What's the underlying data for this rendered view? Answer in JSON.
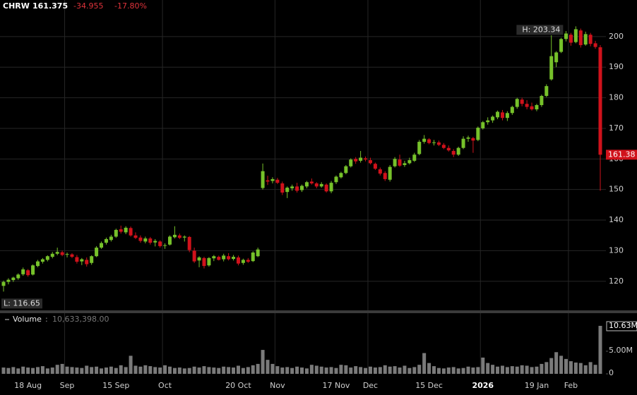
{
  "chart_data": [
    {
      "type": "candlestick",
      "title": "CHRW",
      "last": "161.375",
      "change": "-34.955",
      "change_pct": "-17.80%",
      "high_label": "H: 203.34",
      "low_label": "L: 116.65",
      "last_label": "161.38",
      "up_color": "#76c12a",
      "down_color": "#d0121b",
      "ylim": [
        110.5,
        207.8
      ],
      "yticks": [
        120,
        130,
        140,
        150,
        160,
        170,
        180,
        190,
        200
      ],
      "grid": true,
      "open": [
        118.5,
        119.8,
        120.4,
        121.0,
        122.3,
        123.6,
        122.2,
        125.0,
        126.4,
        127.0,
        128.0,
        129.0,
        129.5,
        128.7,
        128.8,
        127.9,
        126.5,
        127.0,
        126.0,
        128.2,
        131.0,
        132.6,
        133.5,
        134.6,
        137.0,
        136.0,
        137.4,
        135.0,
        134.3,
        133.0,
        134.0,
        132.7,
        133.0,
        131.6,
        132.0,
        134.4,
        135.0,
        134.3,
        134.5,
        130.0,
        126.8,
        127.6,
        125.2,
        127.5,
        128.0,
        127.2,
        128.2,
        127.3,
        127.8,
        126.0,
        127.0,
        126.6,
        128.2,
        150.5,
        153.0,
        152.8,
        153.2,
        152.0,
        149.2,
        150.4,
        151.0,
        149.8,
        151.0,
        152.6,
        152.0,
        151.0,
        151.6,
        149.4,
        152.4,
        154.0,
        155.4,
        157.6,
        160.0,
        159.4,
        160.2,
        159.6,
        158.4,
        156.6,
        155.4,
        153.2,
        157.6,
        159.8,
        158.0,
        158.6,
        159.4,
        161.6,
        165.6,
        166.4,
        165.2,
        165.4,
        164.6,
        163.6,
        162.6,
        161.4,
        163.6,
        166.6,
        166.8,
        166.2,
        170.0,
        172.0,
        172.6,
        173.6,
        175.2,
        173.4,
        175.0,
        177.0,
        179.4,
        178.0,
        177.2,
        176.2,
        177.6,
        180.6,
        186.0,
        191.6,
        195.0,
        199.2,
        200.6,
        198.2,
        202.0,
        197.4,
        200.6,
        197.8,
        196.5
      ],
      "high": [
        120.2,
        121.0,
        121.5,
        122.6,
        124.5,
        124.0,
        125.5,
        127.0,
        127.6,
        128.5,
        129.6,
        131.0,
        130.0,
        129.4,
        129.2,
        128.6,
        127.6,
        127.8,
        128.5,
        131.5,
        133.0,
        134.3,
        135.2,
        137.2,
        138.2,
        138.0,
        137.9,
        136.0,
        135.0,
        134.6,
        134.5,
        133.8,
        133.4,
        132.4,
        135.0,
        138.0,
        135.6,
        135.0,
        134.8,
        131.0,
        128.2,
        128.0,
        127.9,
        128.6,
        128.4,
        129.0,
        129.2,
        128.6,
        128.4,
        127.4,
        127.6,
        129.8,
        131.0,
        158.5,
        154.5,
        154.0,
        153.8,
        152.6,
        151.0,
        151.6,
        152.2,
        151.6,
        152.8,
        153.6,
        152.4,
        152.4,
        152.0,
        152.8,
        154.6,
        155.8,
        158.0,
        160.2,
        160.6,
        162.6,
        160.8,
        160.4,
        158.8,
        157.2,
        156.0,
        158.0,
        160.6,
        161.4,
        159.4,
        160.4,
        162.0,
        166.2,
        167.8,
        166.8,
        166.2,
        166.0,
        165.2,
        164.4,
        163.2,
        164.0,
        167.4,
        167.6,
        167.2,
        170.6,
        172.4,
        173.6,
        174.2,
        175.8,
        176.0,
        175.6,
        177.4,
        180.0,
        180.0,
        179.2,
        178.4,
        178.0,
        181.0,
        184.4,
        200.4,
        195.2,
        199.6,
        201.8,
        201.2,
        203.34,
        202.6,
        201.6,
        201.2,
        198.6,
        197.2
      ],
      "low": [
        116.65,
        119.0,
        119.8,
        120.5,
        121.8,
        121.5,
        121.9,
        124.6,
        125.8,
        126.5,
        127.5,
        128.5,
        128.2,
        127.8,
        127.6,
        125.8,
        125.3,
        124.8,
        125.4,
        127.9,
        130.6,
        132.0,
        133.0,
        134.2,
        135.6,
        135.4,
        134.6,
        133.8,
        132.6,
        132.4,
        132.0,
        131.4,
        131.0,
        130.6,
        131.7,
        134.0,
        133.8,
        133.0,
        129.5,
        126.0,
        124.6,
        124.2,
        124.8,
        126.6,
        126.8,
        126.5,
        126.8,
        126.8,
        125.2,
        125.4,
        126.0,
        126.3,
        127.9,
        150.0,
        151.5,
        152.0,
        151.8,
        148.2,
        147.2,
        149.6,
        149.0,
        149.2,
        150.4,
        151.6,
        150.4,
        150.6,
        149.0,
        148.8,
        151.8,
        153.6,
        155.0,
        157.2,
        158.4,
        158.8,
        159.2,
        158.2,
        156.4,
        154.6,
        152.8,
        152.6,
        157.2,
        157.4,
        157.4,
        158.2,
        159.0,
        161.2,
        165.0,
        164.8,
        164.4,
        164.2,
        163.2,
        162.4,
        160.6,
        161.0,
        163.2,
        165.6,
        162.0,
        165.8,
        169.6,
        171.2,
        171.8,
        173.0,
        172.6,
        172.4,
        174.4,
        176.4,
        177.2,
        176.2,
        175.8,
        175.6,
        177.0,
        180.2,
        185.6,
        190.0,
        194.6,
        198.4,
        197.0,
        197.8,
        196.4,
        197.0,
        196.8,
        196.0,
        149.6
      ],
      "close": [
        119.8,
        120.5,
        121.2,
        122.2,
        123.9,
        122.0,
        125.2,
        126.5,
        127.2,
        128.2,
        129.0,
        129.6,
        128.6,
        128.9,
        128.0,
        126.4,
        127.2,
        125.6,
        128.2,
        131.0,
        132.5,
        133.8,
        134.6,
        136.8,
        136.2,
        137.5,
        135.0,
        134.2,
        133.2,
        134.0,
        132.6,
        133.2,
        131.5,
        131.8,
        134.6,
        135.2,
        134.2,
        134.6,
        130.2,
        126.5,
        127.8,
        125.0,
        127.6,
        128.2,
        127.0,
        128.4,
        127.2,
        128.0,
        125.8,
        127.0,
        126.4,
        129.4,
        130.4,
        156.0,
        152.6,
        153.4,
        152.2,
        149.0,
        150.6,
        151.0,
        149.6,
        151.2,
        152.4,
        152.0,
        151.0,
        151.8,
        149.4,
        152.2,
        154.2,
        155.4,
        157.6,
        159.8,
        159.2,
        160.4,
        159.8,
        158.6,
        156.8,
        155.2,
        153.4,
        157.4,
        160.0,
        157.8,
        158.6,
        159.6,
        161.4,
        165.6,
        166.6,
        165.2,
        165.4,
        164.6,
        163.6,
        162.8,
        161.4,
        163.6,
        166.6,
        167.0,
        166.0,
        170.2,
        172.0,
        172.6,
        173.8,
        175.4,
        173.4,
        175.0,
        177.0,
        179.6,
        178.0,
        177.0,
        176.2,
        177.6,
        180.6,
        183.8,
        193.6,
        194.8,
        199.2,
        201.0,
        198.0,
        202.4,
        197.2,
        200.8,
        197.6,
        196.6,
        161.375
      ]
    },
    {
      "type": "bar",
      "title": "Volume",
      "current": "10,633,398.00",
      "last_label": "10.63M",
      "color": "#7a7a7a",
      "ylim": [
        0,
        11250000
      ],
      "yticks": [
        0,
        {
          "value": 5000000,
          "label": "5.00M"
        }
      ],
      "categories": [
        null,
        null,
        null,
        null,
        null,
        "18 Aug",
        null,
        null,
        null,
        null,
        null,
        null,
        null,
        "Sep",
        null,
        null,
        null,
        null,
        null,
        null,
        null,
        null,
        null,
        "15 Sep",
        null,
        null,
        null,
        null,
        null,
        null,
        null,
        null,
        null,
        "Oct",
        null,
        null,
        null,
        null,
        null,
        null,
        null,
        null,
        null,
        null,
        null,
        null,
        null,
        null,
        "20 Oct",
        null,
        null,
        null,
        null,
        null,
        null,
        null,
        "Nov",
        null,
        null,
        null,
        null,
        null,
        null,
        null,
        null,
        null,
        null,
        null,
        "17 Nov",
        null,
        null,
        null,
        null,
        null,
        null,
        "Dec",
        null,
        null,
        null,
        null,
        null,
        null,
        null,
        null,
        null,
        null,
        null,
        "15 Dec",
        null,
        null,
        null,
        null,
        null,
        null,
        null,
        null,
        null,
        null,
        "2026",
        null,
        null,
        null,
        null,
        null,
        null,
        null,
        null,
        null,
        null,
        "19 Jan",
        null,
        null,
        null,
        null,
        null,
        null,
        "Feb",
        null,
        null,
        null,
        null,
        null,
        null
      ],
      "values": [
        1400000,
        1300000,
        1500000,
        1200000,
        1600000,
        1400000,
        1300000,
        1500000,
        1700000,
        1200000,
        1400000,
        2000000,
        2200000,
        1600000,
        1500000,
        1400000,
        1300000,
        1800000,
        1500000,
        1600000,
        1200000,
        1400000,
        1600000,
        1300000,
        1900000,
        1500000,
        4000000,
        1800000,
        1600000,
        1900000,
        1700000,
        1500000,
        1400000,
        1900000,
        1600000,
        1300000,
        1400000,
        1200000,
        1300000,
        1600000,
        1400000,
        1700000,
        1500000,
        1400000,
        1300000,
        1600000,
        1500000,
        1400000,
        1800000,
        1300000,
        1500000,
        1900000,
        2200000,
        5300000,
        3100000,
        2200000,
        1700000,
        1400000,
        1500000,
        1300000,
        1600000,
        1400000,
        1200000,
        2000000,
        1800000,
        1600000,
        1400000,
        1500000,
        1300000,
        2000000,
        1900000,
        1400000,
        1700000,
        1500000,
        1300000,
        1600000,
        1400000,
        1500000,
        1900000,
        1600000,
        1700000,
        1400000,
        1800000,
        1300000,
        1500000,
        2000000,
        4600000,
        2400000,
        1700000,
        1300000,
        1200000,
        1400000,
        1500000,
        1200000,
        1300000,
        1600000,
        1400000,
        1500000,
        3600000,
        2400000,
        2000000,
        1600000,
        1800000,
        1500000,
        1700000,
        1600000,
        1900000,
        1800000,
        1500000,
        1600000,
        2200000,
        2600000,
        3500000,
        4800000,
        4000000,
        3300000,
        2800000,
        2500000,
        2400000,
        1900000,
        2600000,
        2000000,
        10633398
      ]
    }
  ]
}
